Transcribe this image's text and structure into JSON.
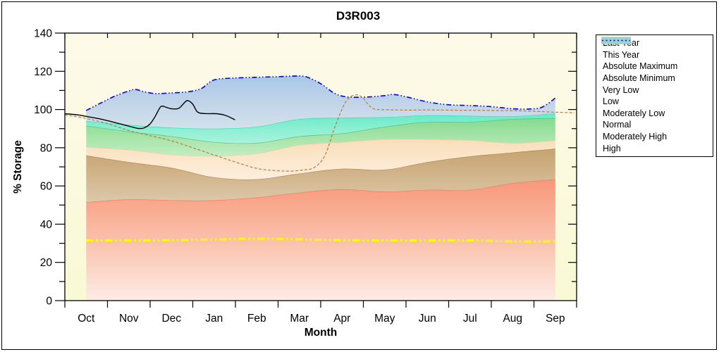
{
  "chart_data": {
    "type": "area",
    "title": "D3R003",
    "xlabel": "Month",
    "ylabel": "% Storage",
    "ylim": [
      0,
      140
    ],
    "y_major_ticks": [
      0,
      20,
      40,
      60,
      80,
      100,
      120,
      140
    ],
    "y_minor_step": 10,
    "grid": false,
    "legend_position": "right-outside",
    "months": [
      "Oct",
      "Nov",
      "Dec",
      "Jan",
      "Feb",
      "Mar",
      "Apr",
      "May",
      "Jun",
      "Jul",
      "Aug",
      "Sep"
    ],
    "plot_bg_top": "#fdfae8",
    "plot_bg_bottom": "#f9f9d5",
    "bands": [
      {
        "name": "Very Low",
        "edge": "#f37a58",
        "fill": [
          "#f8977a",
          "#fac0aa",
          "#fdece6"
        ],
        "top": [
          [
            0,
            51.5
          ],
          [
            1,
            53
          ],
          [
            2,
            52.5
          ],
          [
            3,
            52.5
          ],
          [
            4,
            54
          ],
          [
            5,
            56.5
          ],
          [
            6,
            58.3
          ],
          [
            7,
            57
          ],
          [
            8,
            58
          ],
          [
            9,
            58
          ],
          [
            10,
            61.5
          ],
          [
            11,
            63.5
          ]
        ]
      },
      {
        "name": "Low",
        "edge": "#b08048",
        "fill": [
          "#c6a370",
          "#d2b58c",
          "#dcc8aa"
        ],
        "top": [
          [
            0,
            76
          ],
          [
            1,
            72.5
          ],
          [
            2,
            69.5
          ],
          [
            3,
            64.5
          ],
          [
            4,
            63.5
          ],
          [
            5,
            66.5
          ],
          [
            6,
            69
          ],
          [
            7,
            68.5
          ],
          [
            8,
            72.5
          ],
          [
            9,
            75.5
          ],
          [
            10,
            77.5
          ],
          [
            11,
            79.5
          ]
        ]
      },
      {
        "name": "Moderately Low",
        "edge": "#f0c89a",
        "fill": [
          "#f8ddba",
          "#fbe7cc",
          "#fdeedd"
        ],
        "top": [
          [
            0,
            80.5
          ],
          [
            1,
            79
          ],
          [
            2,
            76.5
          ],
          [
            3,
            75.8
          ],
          [
            4,
            77
          ],
          [
            5,
            81.5
          ],
          [
            6,
            83
          ],
          [
            7,
            84.5
          ],
          [
            8,
            84.5
          ],
          [
            9,
            84
          ],
          [
            10,
            82.5
          ],
          [
            11,
            83.8
          ]
        ]
      },
      {
        "name": "Normal",
        "edge": "#55c06e",
        "fill": [
          "#86da90",
          "#a5e4a8",
          "#c2edc4"
        ],
        "top": [
          [
            0,
            91.5
          ],
          [
            1,
            88.5
          ],
          [
            2,
            86
          ],
          [
            3,
            83
          ],
          [
            4,
            82.5
          ],
          [
            5,
            86
          ],
          [
            6,
            87.5
          ],
          [
            7,
            91
          ],
          [
            8,
            93.5
          ],
          [
            9,
            93.5
          ],
          [
            10,
            95
          ],
          [
            11,
            95.5
          ]
        ]
      },
      {
        "name": "Moderately High",
        "edge": "#2ddfb4",
        "fill": [
          "#66eac6",
          "#8aefd2",
          "#abf2dc"
        ],
        "top": [
          [
            0,
            94
          ],
          [
            1,
            92
          ],
          [
            2,
            90.5
          ],
          [
            3,
            90
          ],
          [
            4,
            91
          ],
          [
            5,
            95
          ],
          [
            6,
            95.7
          ],
          [
            7,
            96
          ],
          [
            8,
            97
          ],
          [
            9,
            96.7
          ],
          [
            10,
            96.5
          ],
          [
            11,
            98
          ]
        ]
      },
      {
        "name": "High",
        "edge": null,
        "legend_line": {
          "color": "#0000dd",
          "dash": "2 3.5",
          "width": 1.5
        },
        "fill": [
          "#a8c8e8",
          "#c0d4e8",
          "#d4e1ec"
        ],
        "top": [
          [
            0,
            99.5
          ],
          [
            0.35,
            103.5
          ],
          [
            0.7,
            107.3
          ],
          [
            1,
            109.7
          ],
          [
            1.15,
            110.5
          ],
          [
            1.35,
            109.4
          ],
          [
            1.6,
            108.4
          ],
          [
            1.85,
            108.5
          ],
          [
            2.1,
            108.8
          ],
          [
            2.4,
            109.3
          ],
          [
            2.7,
            111
          ],
          [
            3,
            115.5
          ],
          [
            3.5,
            116.5
          ],
          [
            4,
            116.9
          ],
          [
            4.5,
            117.2
          ],
          [
            4.85,
            117.5
          ],
          [
            5.15,
            117.2
          ],
          [
            5.5,
            113.5
          ],
          [
            5.8,
            108.8
          ],
          [
            6.05,
            106.8
          ],
          [
            6.35,
            106.4
          ],
          [
            6.7,
            106.7
          ],
          [
            7,
            107.3
          ],
          [
            7.2,
            107.9
          ],
          [
            7.5,
            106.7
          ],
          [
            8,
            104
          ],
          [
            8.5,
            102.5
          ],
          [
            9,
            102.1
          ],
          [
            9.5,
            101.5
          ],
          [
            10,
            100.4
          ],
          [
            10.4,
            100.3
          ],
          [
            10.7,
            101.3
          ],
          [
            11,
            106
          ]
        ]
      }
    ],
    "lines": [
      {
        "name": "Last Year",
        "color": "#b57a42",
        "dash": "4 2.5",
        "width": 1.2,
        "points": [
          [
            -0.5,
            97.2
          ],
          [
            0,
            95.3
          ],
          [
            0.5,
            92.6
          ],
          [
            1,
            89
          ],
          [
            1.5,
            86.3
          ],
          [
            2,
            83.6
          ],
          [
            2.5,
            80
          ],
          [
            3,
            76.2
          ],
          [
            3.5,
            72.5
          ],
          [
            4,
            69.2
          ],
          [
            4.4,
            68.1
          ],
          [
            4.8,
            67.8
          ],
          [
            5.1,
            68.4
          ],
          [
            5.35,
            69.7
          ],
          [
            5.6,
            76
          ],
          [
            5.85,
            92
          ],
          [
            6.1,
            104.5
          ],
          [
            6.33,
            107.7
          ],
          [
            6.5,
            105.8
          ],
          [
            6.62,
            102.5
          ],
          [
            6.75,
            100.3
          ],
          [
            7,
            99.9
          ],
          [
            7.5,
            99.7
          ],
          [
            8,
            99.8
          ],
          [
            8.5,
            99.7
          ],
          [
            9,
            99.6
          ],
          [
            9.5,
            99.5
          ],
          [
            10,
            99.4
          ],
          [
            10.5,
            99.1
          ],
          [
            11,
            98.6
          ],
          [
            11.45,
            98.3
          ]
        ]
      },
      {
        "name": "This Year",
        "color": "#000000",
        "dash": "",
        "width": 1.4,
        "points": [
          [
            -0.5,
            97.8
          ],
          [
            -0.2,
            97.2
          ],
          [
            0,
            96.4
          ],
          [
            0.3,
            95.2
          ],
          [
            0.6,
            93.6
          ],
          [
            0.9,
            91.9
          ],
          [
            1.1,
            90.7
          ],
          [
            1.22,
            90.1
          ],
          [
            1.35,
            90.3
          ],
          [
            1.5,
            92.5
          ],
          [
            1.62,
            96.5
          ],
          [
            1.75,
            101.5
          ],
          [
            1.87,
            101.2
          ],
          [
            2,
            100.4
          ],
          [
            2.17,
            100.6
          ],
          [
            2.31,
            103.7
          ],
          [
            2.38,
            104.7
          ],
          [
            2.5,
            102.8
          ],
          [
            2.61,
            98.7
          ],
          [
            2.78,
            97.9
          ],
          [
            3.06,
            97.8
          ],
          [
            3.27,
            96.9
          ],
          [
            3.49,
            94.6
          ]
        ]
      },
      {
        "name": "Absolute Maximum",
        "color": "#0000dd",
        "dash": "7 3 1.5 3 1.5 3",
        "width": 1.6,
        "points": [
          [
            0,
            99.5
          ],
          [
            0.35,
            103.5
          ],
          [
            0.7,
            107.3
          ],
          [
            1,
            109.7
          ],
          [
            1.15,
            110.5
          ],
          [
            1.35,
            109.4
          ],
          [
            1.6,
            108.4
          ],
          [
            1.85,
            108.5
          ],
          [
            2.1,
            108.8
          ],
          [
            2.4,
            109.3
          ],
          [
            2.7,
            111
          ],
          [
            3,
            115.5
          ],
          [
            3.5,
            116.5
          ],
          [
            4,
            116.9
          ],
          [
            4.5,
            117.2
          ],
          [
            4.85,
            117.5
          ],
          [
            5.15,
            117.2
          ],
          [
            5.5,
            113.5
          ],
          [
            5.8,
            108.8
          ],
          [
            6.05,
            106.8
          ],
          [
            6.35,
            106.4
          ],
          [
            6.7,
            106.7
          ],
          [
            7,
            107.3
          ],
          [
            7.2,
            107.9
          ],
          [
            7.5,
            106.7
          ],
          [
            8,
            104
          ],
          [
            8.5,
            102.5
          ],
          [
            9,
            102.1
          ],
          [
            9.5,
            101.5
          ],
          [
            10,
            100.4
          ],
          [
            10.4,
            100.3
          ],
          [
            10.7,
            101.3
          ],
          [
            11,
            106
          ]
        ]
      },
      {
        "name": "Absolute Minimum",
        "color": "#ffff00",
        "dash": "10 4 2.5 4 2.5 4",
        "width": 3,
        "points": [
          [
            0,
            31.5
          ],
          [
            1,
            31.5
          ],
          [
            2,
            31.6
          ],
          [
            3,
            32
          ],
          [
            4,
            32.4
          ],
          [
            5,
            32.1
          ],
          [
            6,
            31.6
          ],
          [
            7,
            31.5
          ],
          [
            8,
            31.5
          ],
          [
            9,
            31.5
          ],
          [
            10,
            31
          ],
          [
            11,
            31
          ]
        ]
      }
    ]
  }
}
